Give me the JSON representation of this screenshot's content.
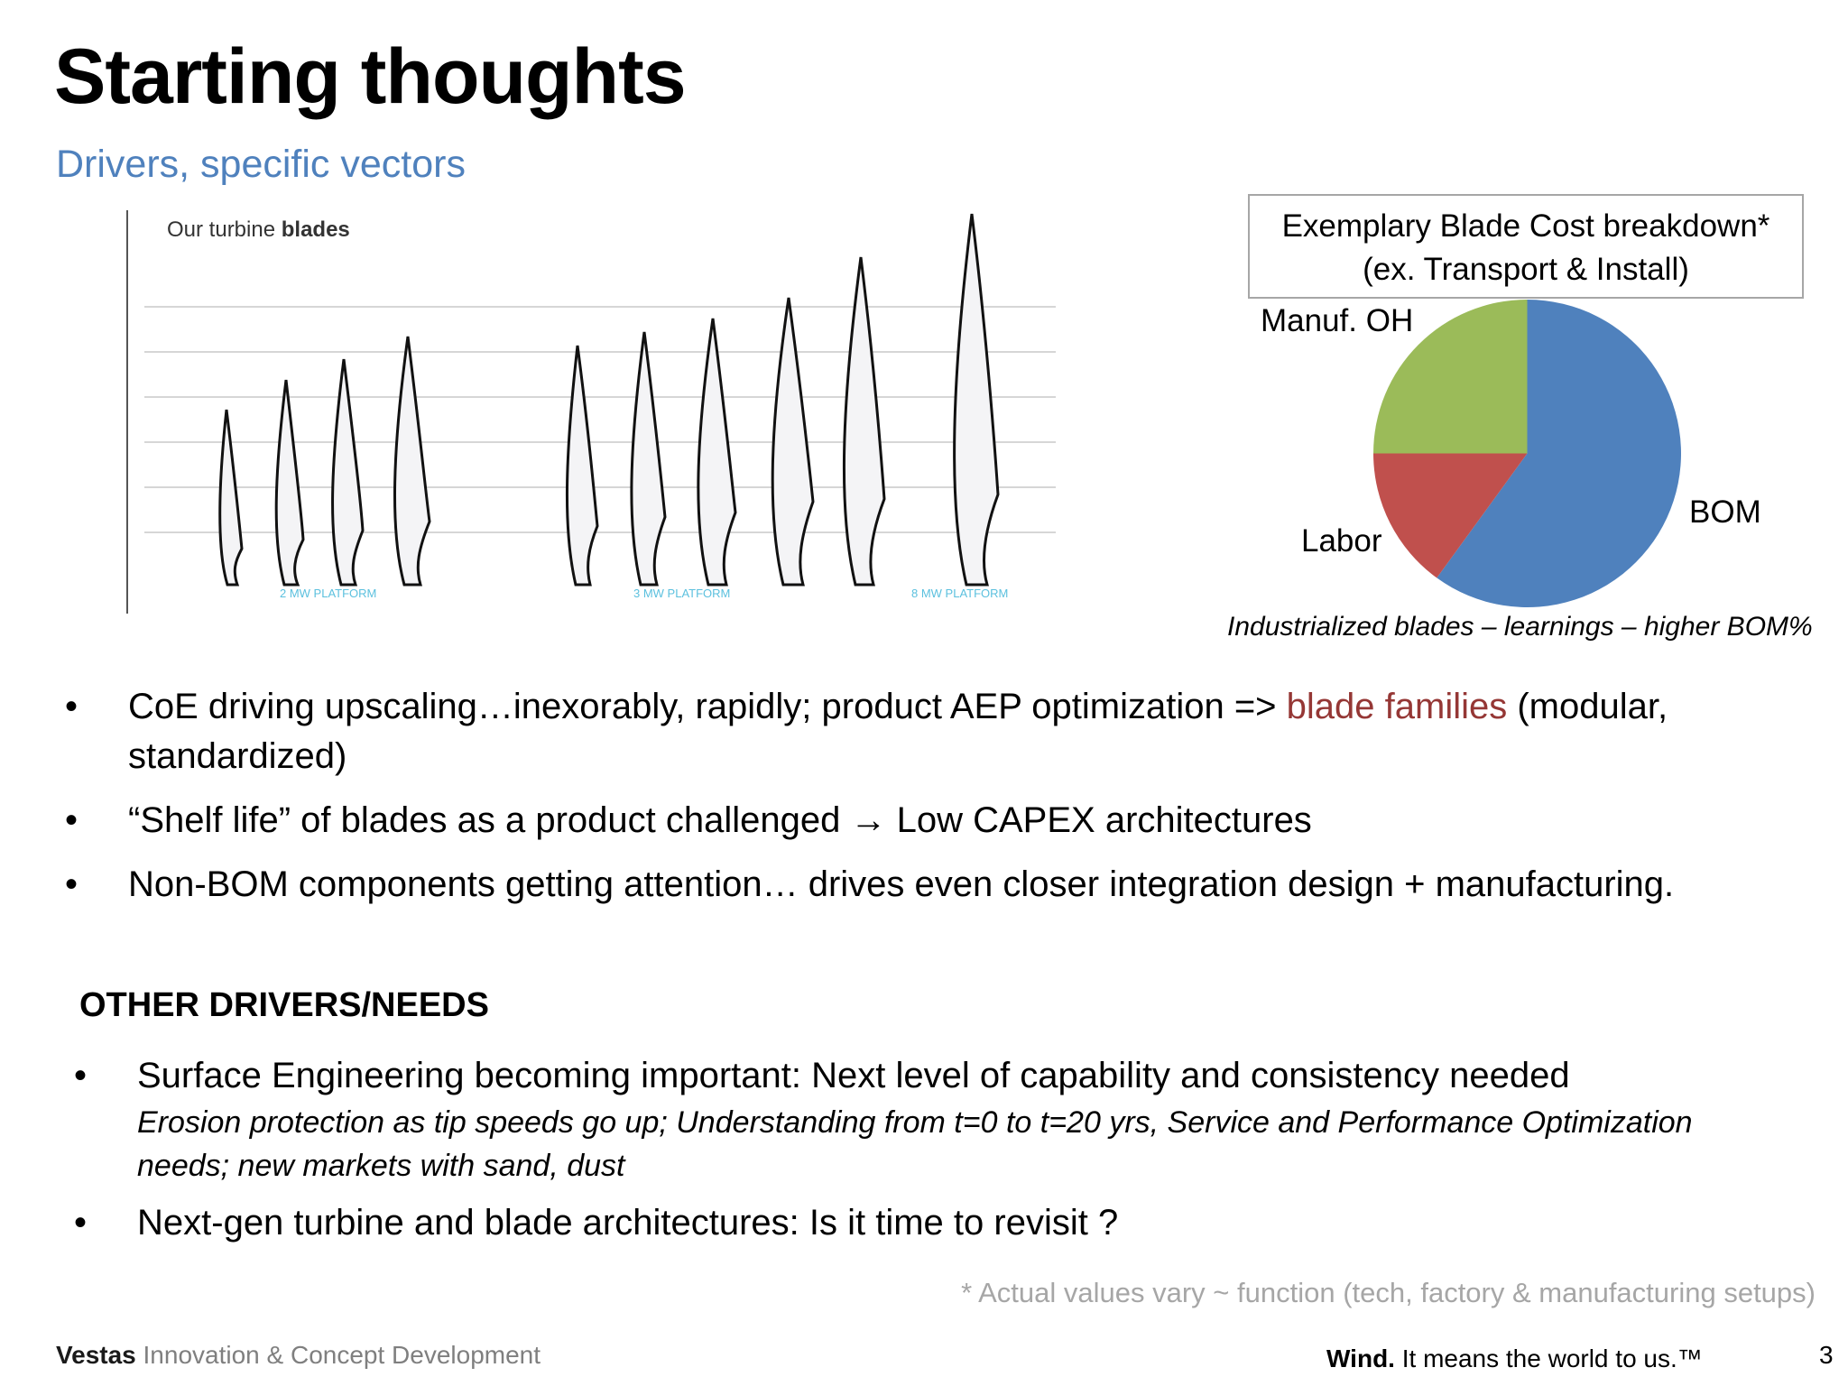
{
  "slide": {
    "title": "Starting thoughts",
    "subtitle": "Drivers, specific vectors",
    "page_number": "3"
  },
  "blades_image": {
    "heading_prefix": "Our turbine ",
    "heading_bold": "blades",
    "platforms": [
      "2 MW PLATFORM",
      "3 MW PLATFORM",
      "8 MW PLATFORM"
    ]
  },
  "pie": {
    "box_line1": "Exemplary Blade Cost breakdown*",
    "box_line2": "(ex. Transport & Install)",
    "labels": {
      "bom": "BOM",
      "labor": "Labor",
      "manuf": "Manuf. OH"
    },
    "caption": "Industrialized blades – learnings – higher BOM%",
    "colors": {
      "bom": "#4f81bd",
      "labor": "#c0504d",
      "manuf": "#9bbb59"
    }
  },
  "chart_data": {
    "type": "pie",
    "categories": [
      "BOM",
      "Labor",
      "Manuf. OH"
    ],
    "values": [
      60,
      15,
      25
    ]
  },
  "bullets": {
    "b1_part1": "CoE driving upscaling…inexorably, rapidly;  product AEP optimization => ",
    "b1_accent": "blade families",
    "b1_part2": "  (modular, standardized)",
    "b2_part1": "“Shelf life” of blades as a product challenged  ",
    "b2_arrow": "→",
    "b2_part2": " Low CAPEX architectures",
    "b3": "Non-BOM components getting attention… drives even closer integration design + manufacturing."
  },
  "other": {
    "heading": "OTHER DRIVERS/NEEDS",
    "o1": "Surface Engineering becoming important: Next level of capability and consistency needed",
    "o1_sub": "Erosion protection as tip speeds go up;  Understanding  from t=0 to t=20 yrs, Service and Performance Optimization needs; new markets with sand, dust",
    "o2": "Next-gen turbine  and blade architectures: Is it time to revisit ?"
  },
  "footnote": "* Actual values vary ~ function (tech, factory & manufacturing setups)",
  "footer": {
    "brand": "Vestas",
    "brand_rest": " Innovation & Concept Development",
    "tagline_bold": "Wind.",
    "tagline_rest": " It means the world to us.™"
  },
  "bullet_char": "•"
}
